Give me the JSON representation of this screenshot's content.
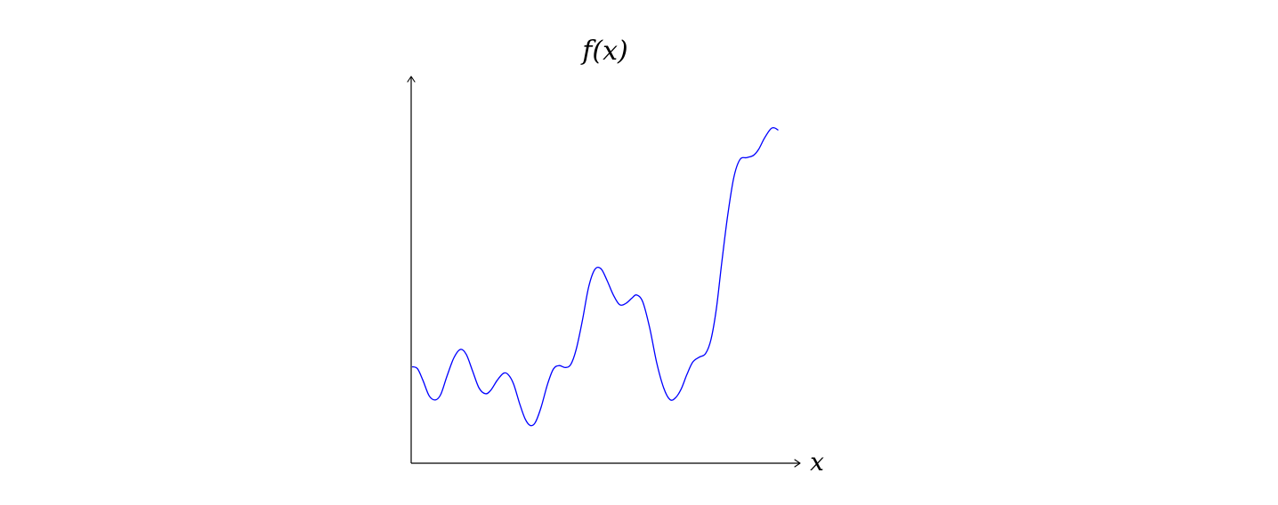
{
  "chart_data": {
    "type": "line",
    "title": "f(x)",
    "xlabel": "x",
    "ylabel": "",
    "xlim": [
      0,
      100
    ],
    "ylim": [
      0,
      100
    ],
    "grid": false,
    "legend": "none",
    "ticks": "none",
    "series": [
      {
        "color": "#0000ff",
        "points": [
          [
            0,
            25
          ],
          [
            1.4,
            24.5
          ],
          [
            2.8,
            21.5
          ],
          [
            4.4,
            17.5
          ],
          [
            6,
            16.4
          ],
          [
            7.4,
            17.8
          ],
          [
            9,
            22.5
          ],
          [
            10.8,
            27.3
          ],
          [
            12.5,
            29.5
          ],
          [
            14,
            28.2
          ],
          [
            15.6,
            24
          ],
          [
            17.3,
            19.5
          ],
          [
            19,
            18
          ],
          [
            20.4,
            19
          ],
          [
            22,
            21.5
          ],
          [
            23.6,
            23.3
          ],
          [
            24.8,
            23
          ],
          [
            26.2,
            20.6
          ],
          [
            27.8,
            15.4
          ],
          [
            29.2,
            11.5
          ],
          [
            30.5,
            9.8
          ],
          [
            31.8,
            10.5
          ],
          [
            33.3,
            14.4
          ],
          [
            35,
            20.5
          ],
          [
            36.5,
            24.4
          ],
          [
            38,
            25.3
          ],
          [
            39.6,
            24.8
          ],
          [
            41,
            25.6
          ],
          [
            42.4,
            29.5
          ],
          [
            44,
            37
          ],
          [
            45.6,
            45.6
          ],
          [
            47.2,
            50.2
          ],
          [
            48.8,
            50.4
          ],
          [
            50.4,
            47.3
          ],
          [
            52,
            43.6
          ],
          [
            53.6,
            41.1
          ],
          [
            55.2,
            41.4
          ],
          [
            56.8,
            42.8
          ],
          [
            58,
            43.6
          ],
          [
            59.6,
            41.8
          ],
          [
            61.4,
            35
          ],
          [
            63.2,
            26
          ],
          [
            65,
            19.5
          ],
          [
            66.6,
            16.5
          ],
          [
            68,
            16.9
          ],
          [
            69.5,
            19.2
          ],
          [
            71,
            23
          ],
          [
            72.5,
            26.2
          ],
          [
            74.2,
            27.5
          ],
          [
            75.8,
            28.4
          ],
          [
            77.2,
            32
          ],
          [
            78.6,
            40
          ],
          [
            80,
            52
          ],
          [
            81.5,
            64
          ],
          [
            83.1,
            74
          ],
          [
            84.7,
            78.7
          ],
          [
            86.5,
            79.2
          ],
          [
            88.2,
            79.8
          ],
          [
            89.5,
            81.3
          ],
          [
            91,
            84.2
          ],
          [
            92.6,
            86.6
          ],
          [
            93.6,
            86.9
          ],
          [
            94.6,
            86.3
          ]
        ]
      }
    ]
  }
}
